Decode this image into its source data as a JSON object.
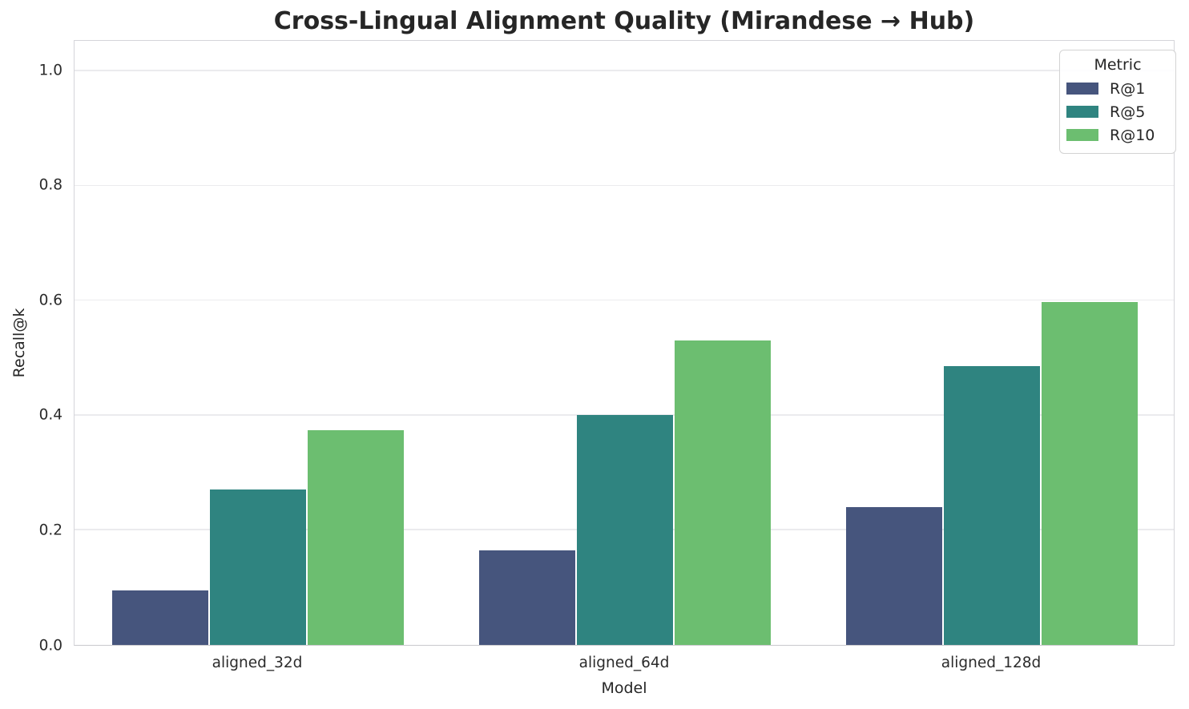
{
  "chart_data": {
    "type": "bar",
    "title": "Cross-Lingual Alignment Quality (Mirandese → Hub)",
    "xlabel": "Model",
    "ylabel": "Recall@k",
    "categories": [
      "aligned_32d",
      "aligned_64d",
      "aligned_128d"
    ],
    "series": [
      {
        "name": "R@1",
        "color": "#46557d",
        "values": [
          0.095,
          0.165,
          0.24
        ]
      },
      {
        "name": "R@5",
        "color": "#2f8480",
        "values": [
          0.27,
          0.4,
          0.485
        ]
      },
      {
        "name": "R@10",
        "color": "#6cbe70",
        "values": [
          0.373,
          0.529,
          0.596
        ]
      }
    ],
    "ylim": [
      0,
      1.053
    ],
    "yticks": [
      0.0,
      0.2,
      0.4,
      0.6,
      0.8,
      1.0
    ],
    "ytick_labels": [
      "0.0",
      "0.2",
      "0.4",
      "0.6",
      "0.8",
      "1.0"
    ],
    "legend_title": "Metric",
    "legend_position": "upper right",
    "grid": true,
    "group_width_fraction": 0.8
  }
}
